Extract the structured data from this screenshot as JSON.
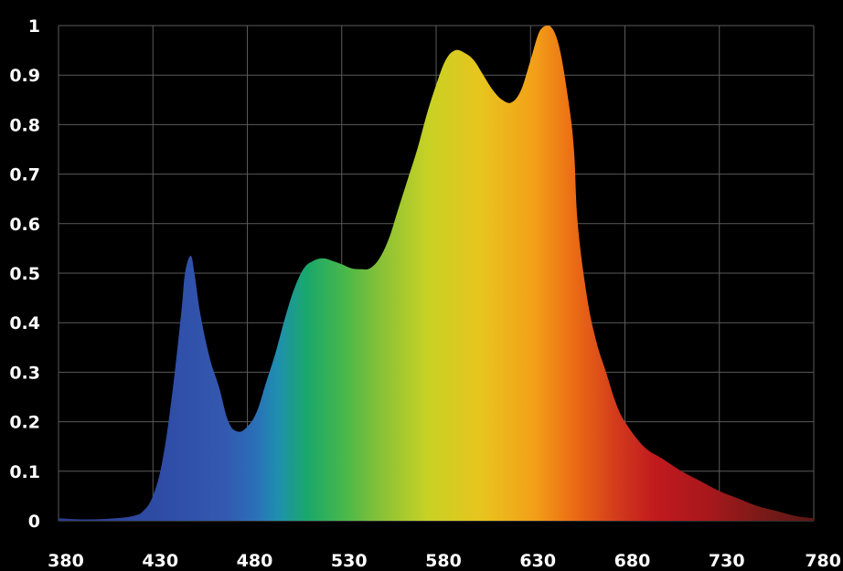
{
  "chart_data": {
    "type": "area",
    "title": "",
    "xlabel": "",
    "ylabel": "",
    "xlim": [
      380,
      780
    ],
    "ylim": [
      0,
      1
    ],
    "grid": true,
    "background": "#000000",
    "fill": "visible-spectrum gradient (blue → green → yellow → orange → red)",
    "x_ticks": [
      "380",
      "430",
      "480",
      "530",
      "580",
      "630",
      "680",
      "730",
      "780"
    ],
    "y_ticks": [
      "0",
      "0.1",
      "0.2",
      "0.3",
      "0.4",
      "0.5",
      "0.6",
      "0.7",
      "0.8",
      "0.9",
      "1"
    ],
    "x": [
      380,
      390,
      400,
      410,
      420,
      425,
      430,
      435,
      440,
      445,
      447,
      450,
      452,
      455,
      460,
      465,
      470,
      475,
      480,
      485,
      490,
      495,
      500,
      505,
      510,
      515,
      520,
      525,
      530,
      535,
      540,
      545,
      550,
      555,
      560,
      565,
      570,
      575,
      580,
      585,
      590,
      595,
      600,
      605,
      610,
      615,
      620,
      625,
      630,
      635,
      640,
      645,
      650,
      653,
      655,
      660,
      665,
      670,
      675,
      680,
      690,
      700,
      710,
      720,
      730,
      740,
      750,
      760,
      770,
      780
    ],
    "values": [
      0.005,
      0.003,
      0.003,
      0.005,
      0.01,
      0.02,
      0.05,
      0.12,
      0.25,
      0.42,
      0.5,
      0.535,
      0.5,
      0.42,
      0.33,
      0.27,
      0.2,
      0.18,
      0.19,
      0.22,
      0.28,
      0.34,
      0.41,
      0.47,
      0.51,
      0.525,
      0.53,
      0.525,
      0.518,
      0.51,
      0.508,
      0.51,
      0.53,
      0.57,
      0.63,
      0.69,
      0.75,
      0.82,
      0.88,
      0.93,
      0.95,
      0.945,
      0.93,
      0.9,
      0.87,
      0.85,
      0.845,
      0.87,
      0.93,
      0.99,
      1.0,
      0.96,
      0.85,
      0.75,
      0.6,
      0.45,
      0.36,
      0.3,
      0.24,
      0.2,
      0.15,
      0.125,
      0.1,
      0.08,
      0.06,
      0.045,
      0.03,
      0.02,
      0.01,
      0.005
    ]
  }
}
